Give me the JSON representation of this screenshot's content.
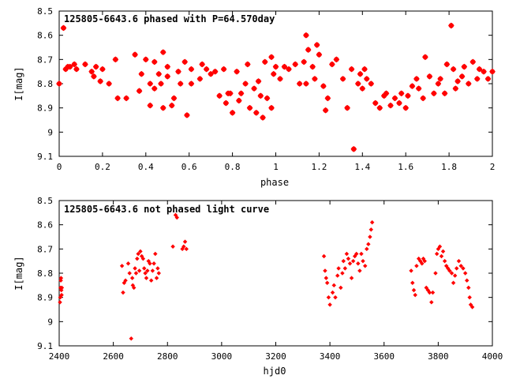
{
  "chart_data": [
    {
      "type": "scatter",
      "title": "125805-6643.6 phased with P=64.570day",
      "xlabel": "phase",
      "ylabel": "I[mag]",
      "xlim": [
        0,
        2
      ],
      "ylim": [
        9.1,
        8.5
      ],
      "y_inverted": true,
      "x_ticks": [
        "0",
        "0.2",
        "0.4",
        "0.6",
        "0.8",
        "1",
        "1.2",
        "1.4",
        "1.6",
        "1.8",
        "2"
      ],
      "x_tick_values": [
        0,
        0.2,
        0.4,
        0.6,
        0.8,
        1.0,
        1.2,
        1.4,
        1.6,
        1.8,
        2.0
      ],
      "y_ticks": [
        "8.5",
        "8.6",
        "8.7",
        "8.8",
        "8.9",
        "9",
        "9.1"
      ],
      "y_tick_values": [
        8.5,
        8.6,
        8.7,
        8.8,
        8.9,
        9.0,
        9.1
      ],
      "grid": false,
      "marker_color": "#ff0000",
      "marker": "star",
      "x": [
        0.0,
        0.02,
        0.03,
        0.04,
        0.05,
        0.07,
        0.08,
        0.12,
        0.15,
        0.16,
        0.17,
        0.19,
        0.2,
        0.23,
        0.26,
        0.27,
        0.31,
        0.35,
        0.37,
        0.38,
        0.4,
        0.42,
        0.42,
        0.44,
        0.44,
        0.46,
        0.47,
        0.48,
        0.48,
        0.5,
        0.5,
        0.52,
        0.53,
        0.55,
        0.56,
        0.58,
        0.59,
        0.61,
        0.61,
        0.65,
        0.66,
        0.68,
        0.7,
        0.72,
        0.74,
        0.76,
        0.77,
        0.78,
        0.79,
        0.8,
        0.82,
        0.83,
        0.84,
        0.86,
        0.87,
        0.88,
        0.9,
        0.91,
        0.92,
        0.93,
        0.94,
        0.95,
        0.96,
        0.98,
        0.98,
        0.99,
        1.0,
        1.02,
        1.04,
        1.06,
        1.09,
        1.11,
        1.13,
        1.14,
        1.14,
        1.15,
        1.17,
        1.18,
        1.19,
        1.2,
        1.22,
        1.23,
        1.24,
        1.26,
        1.28,
        1.31,
        1.33,
        1.35,
        1.36,
        1.38,
        1.39,
        1.4,
        1.41,
        1.42,
        1.44,
        1.46,
        1.48,
        1.5,
        1.51,
        1.53,
        1.55,
        1.57,
        1.58,
        1.6,
        1.61,
        1.63,
        1.65,
        1.66,
        1.68,
        1.69,
        1.71,
        1.73,
        1.75,
        1.76,
        1.78,
        1.79,
        1.81,
        1.82,
        1.83,
        1.84,
        1.86,
        1.87,
        1.89,
        1.91,
        1.93,
        1.94,
        1.96,
        1.98,
        2.0
      ],
      "y": [
        8.8,
        8.57,
        8.74,
        8.73,
        8.73,
        8.72,
        8.74,
        8.72,
        8.75,
        8.77,
        8.73,
        8.79,
        8.74,
        8.8,
        8.7,
        8.86,
        8.86,
        8.68,
        8.83,
        8.76,
        8.7,
        8.89,
        8.8,
        8.82,
        8.71,
        8.76,
        8.8,
        8.67,
        8.9,
        8.77,
        8.73,
        8.89,
        8.86,
        8.75,
        8.8,
        8.71,
        8.93,
        8.74,
        8.8,
        8.78,
        8.72,
        8.74,
        8.76,
        8.75,
        8.85,
        8.74,
        8.88,
        8.84,
        8.84,
        8.92,
        8.75,
        8.87,
        8.84,
        8.8,
        8.72,
        8.9,
        8.82,
        8.92,
        8.79,
        8.85,
        8.94,
        8.71,
        8.86,
        8.9,
        8.69,
        8.76,
        8.73,
        8.78,
        8.73,
        8.74,
        8.72,
        8.8,
        8.71,
        8.6,
        8.8,
        8.66,
        8.73,
        8.78,
        8.64,
        8.68,
        8.81,
        8.91,
        8.86,
        8.72,
        8.7,
        8.78,
        8.9,
        8.74,
        9.07,
        8.8,
        8.76,
        8.82,
        8.74,
        8.78,
        8.8,
        8.88,
        8.9,
        8.85,
        8.84,
        8.89,
        8.86,
        8.88,
        8.84,
        8.9,
        8.85,
        8.81,
        8.78,
        8.82,
        8.86,
        8.69,
        8.77,
        8.84,
        8.8,
        8.78,
        8.84,
        8.72,
        8.56,
        8.74,
        8.82,
        8.79,
        8.77,
        8.73,
        8.8,
        8.71,
        8.78,
        8.74,
        8.75,
        8.78,
        8.75
      ],
      "grouped_as_bookkeeping_note": ""
    },
    {
      "type": "scatter",
      "title": "125805-6643.6 not phased light curve",
      "xlabel": "hjd0",
      "ylabel": "I[mag]",
      "xlim": [
        2400,
        4000
      ],
      "ylim": [
        9.1,
        8.5
      ],
      "y_inverted": true,
      "x_ticks": [
        "2400",
        "2600",
        "2800",
        "3000",
        "3200",
        "3400",
        "3600",
        "3800",
        "4000"
      ],
      "x_tick_values": [
        2400,
        2600,
        2800,
        3000,
        3200,
        3400,
        3600,
        3800,
        4000
      ],
      "y_ticks": [
        "8.5",
        "8.6",
        "8.7",
        "8.8",
        "8.9",
        "9",
        "9.1"
      ],
      "y_tick_values": [
        8.5,
        8.6,
        8.7,
        8.8,
        8.9,
        9.0,
        9.1
      ],
      "grid": false,
      "marker_color": "#ff0000",
      "marker": "diamond",
      "x": [
        2403,
        2404,
        2405,
        2406,
        2407,
        2408,
        2409,
        2410,
        2632,
        2636,
        2640,
        2645,
        2655,
        2660,
        2666,
        2670,
        2672,
        2676,
        2680,
        2684,
        2688,
        2692,
        2696,
        2700,
        2705,
        2710,
        2714,
        2718,
        2722,
        2726,
        2730,
        2735,
        2740,
        2745,
        2750,
        2755,
        2760,
        2764,
        2768,
        2820,
        2830,
        2835,
        2855,
        2860,
        2865,
        2870,
        3378,
        3382,
        3386,
        3390,
        3395,
        3400,
        3410,
        3415,
        3420,
        3428,
        3432,
        3440,
        3446,
        3450,
        3456,
        3462,
        3468,
        3474,
        3480,
        3486,
        3492,
        3498,
        3504,
        3510,
        3516,
        3522,
        3530,
        3536,
        3542,
        3548,
        3552,
        3556,
        3700,
        3705,
        3710,
        3715,
        3720,
        3728,
        3734,
        3740,
        3745,
        3750,
        3756,
        3762,
        3768,
        3775,
        3780,
        3790,
        3795,
        3800,
        3806,
        3812,
        3818,
        3824,
        3830,
        3836,
        3842,
        3850,
        3856,
        3862,
        3868,
        3876,
        3884,
        3892,
        3900,
        3906,
        3912,
        3916,
        3920,
        3926
      ],
      "y": [
        8.92,
        8.9,
        8.86,
        8.83,
        8.82,
        8.87,
        8.89,
        8.86,
        8.77,
        8.88,
        8.84,
        8.83,
        8.76,
        8.8,
        9.07,
        8.82,
        8.85,
        8.86,
        8.78,
        8.8,
        8.74,
        8.72,
        8.79,
        8.71,
        8.73,
        8.74,
        8.78,
        8.8,
        8.82,
        8.79,
        8.75,
        8.76,
        8.83,
        8.79,
        8.76,
        8.72,
        8.82,
        8.78,
        8.8,
        8.69,
        8.56,
        8.57,
        8.7,
        8.69,
        8.67,
        8.7,
        8.73,
        8.79,
        8.82,
        8.84,
        8.9,
        8.93,
        8.88,
        8.85,
        8.9,
        8.81,
        8.78,
        8.86,
        8.8,
        8.75,
        8.78,
        8.72,
        8.74,
        8.76,
        8.82,
        8.75,
        8.73,
        8.72,
        8.76,
        8.79,
        8.72,
        8.75,
        8.77,
        8.7,
        8.68,
        8.65,
        8.62,
        8.59,
        8.79,
        8.84,
        8.87,
        8.89,
        8.77,
        8.74,
        8.75,
        8.76,
        8.74,
        8.75,
        8.86,
        8.87,
        8.88,
        8.92,
        8.88,
        8.8,
        8.72,
        8.7,
        8.69,
        8.73,
        8.71,
        8.75,
        8.77,
        8.78,
        8.79,
        8.8,
        8.84,
        8.81,
        8.78,
        8.75,
        8.77,
        8.78,
        8.8,
        8.83,
        8.86,
        8.9,
        8.93,
        8.94
      ]
    }
  ]
}
